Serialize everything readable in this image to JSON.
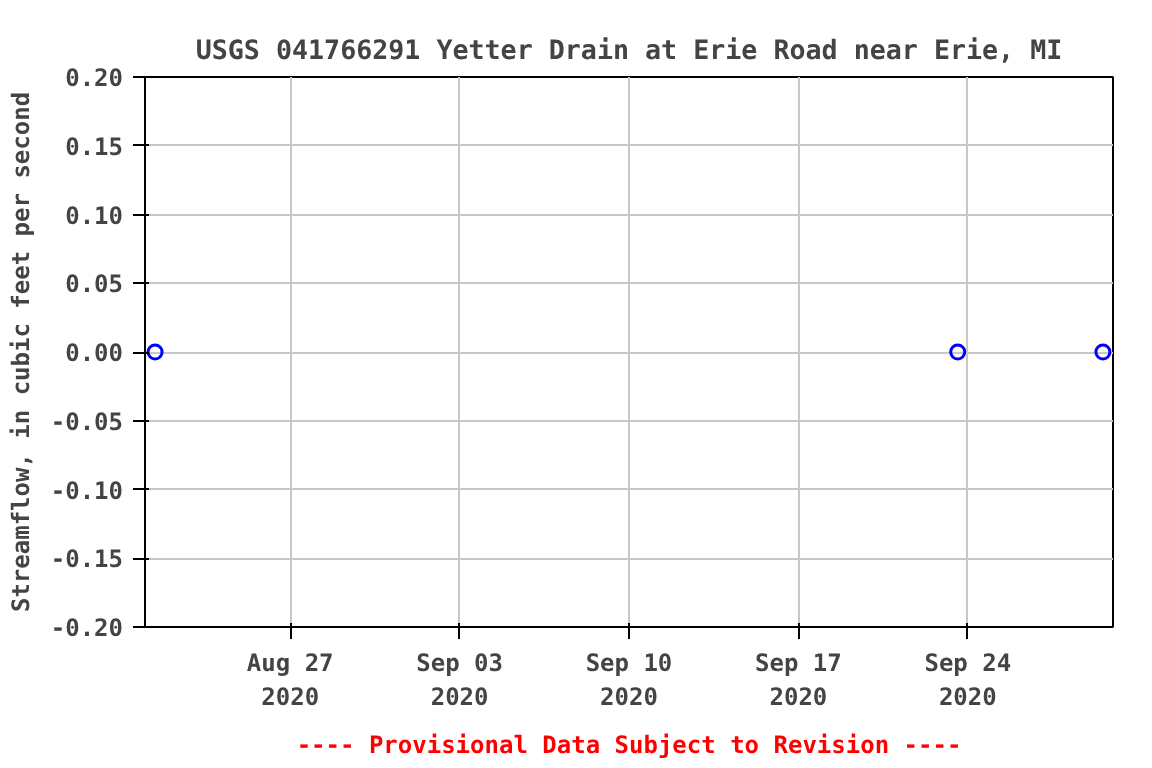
{
  "chart_data": {
    "type": "scatter",
    "title": "USGS 041766291 Yetter Drain at Erie Road near Erie, MI",
    "ylabel": "Streamflow, in cubic feet per second",
    "x": [
      "2020-08-21T10:00",
      "2020-09-23T14:00",
      "2020-09-29T14:00"
    ],
    "series": [
      {
        "color": "#0000ff",
        "values": [
          0.0,
          0.0,
          0.0
        ]
      }
    ],
    "marker": "circle",
    "xlim": [
      "2020-08-21T00:00",
      "2020-09-30T00:00"
    ],
    "xticks": [
      {
        "value": "2020-08-27",
        "label": "Aug 27\n2020"
      },
      {
        "value": "2020-09-03",
        "label": "Sep 03\n2020"
      },
      {
        "value": "2020-09-10",
        "label": "Sep 10\n2020"
      },
      {
        "value": "2020-09-17",
        "label": "Sep 17\n2020"
      },
      {
        "value": "2020-09-24",
        "label": "Sep 24\n2020"
      }
    ],
    "ylim": [
      -0.2,
      0.2
    ],
    "yticks": [
      {
        "value": -0.2,
        "label": "-0.20"
      },
      {
        "value": -0.15,
        "label": "-0.15"
      },
      {
        "value": -0.1,
        "label": "-0.10"
      },
      {
        "value": -0.05,
        "label": "-0.05"
      },
      {
        "value": 0.0,
        "label": "0.00"
      },
      {
        "value": 0.05,
        "label": "0.05"
      },
      {
        "value": 0.1,
        "label": "0.10"
      },
      {
        "value": 0.15,
        "label": "0.15"
      },
      {
        "value": 0.2,
        "label": "0.20"
      }
    ],
    "grid": true,
    "annotations": [
      "---- Provisional Data Subject to Revision ----"
    ]
  }
}
